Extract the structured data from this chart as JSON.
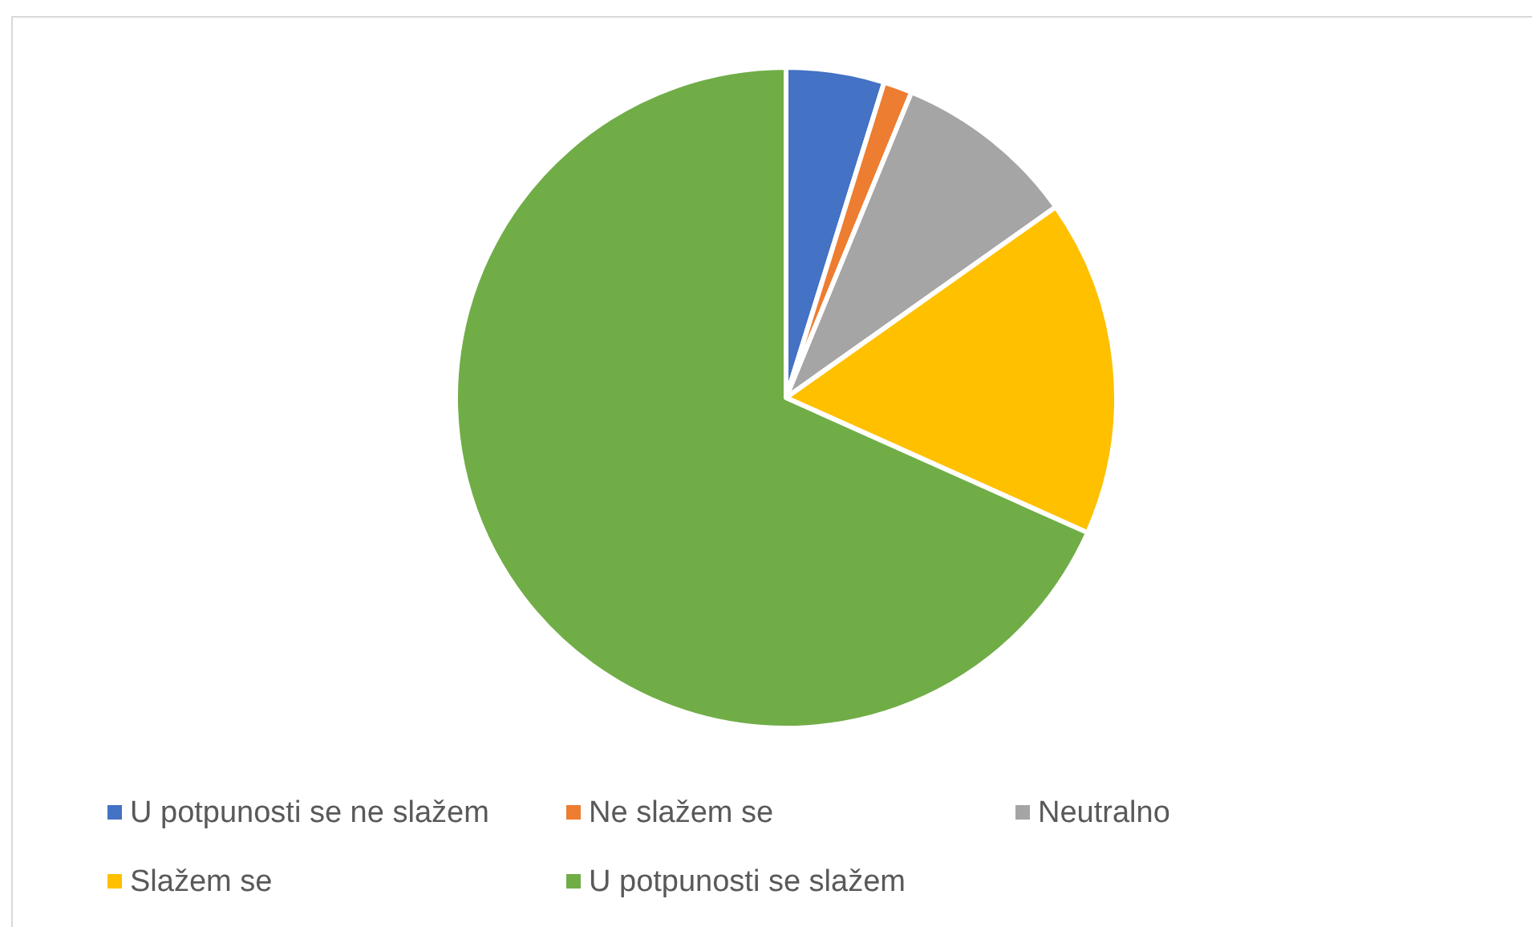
{
  "chart_data": {
    "type": "pie",
    "categories": [
      "U potpunosti se ne slažem",
      "Ne slažem se",
      "Neutralno",
      "Slažem se",
      "U potpunosti se slažem"
    ],
    "values": [
      4.8,
      1.4,
      9.0,
      16.5,
      68.3
    ],
    "colors": [
      "#4472c4",
      "#ed7d31",
      "#a5a5a5",
      "#ffc000",
      "#70ad47"
    ],
    "legend": "bottom"
  }
}
